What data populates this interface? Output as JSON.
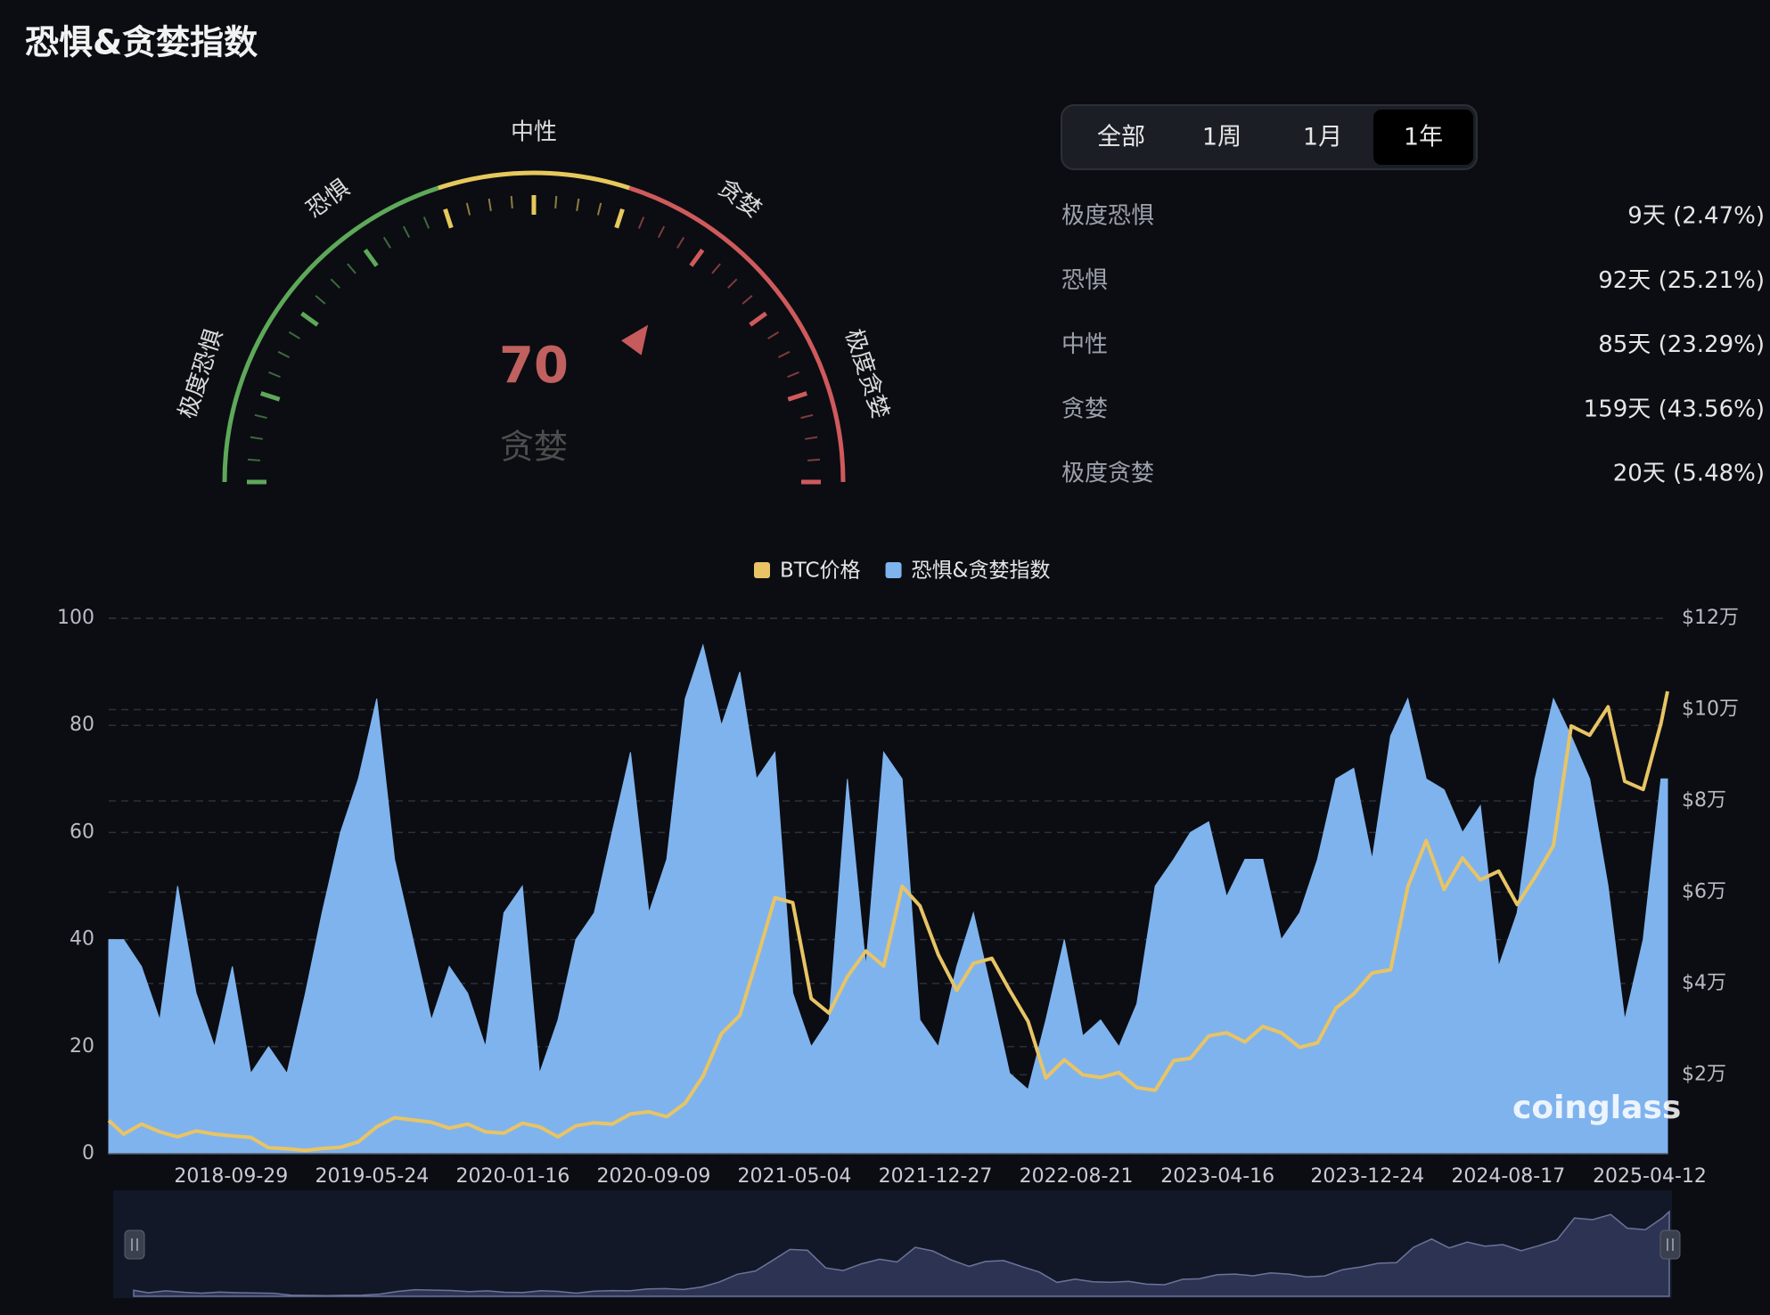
{
  "header": {
    "title": "恐惧&贪婪指数"
  },
  "tabs": {
    "items": [
      "全部",
      "1周",
      "1月",
      "1年"
    ],
    "active": 3
  },
  "stats": {
    "rows": [
      [
        "极度恐惧",
        "9天 (2.47%)"
      ],
      [
        "恐惧",
        "92天 (25.21%)"
      ],
      [
        "中性",
        "85天 (23.29%)"
      ],
      [
        "贪婪",
        "159天 (43.56%)"
      ],
      [
        "极度贪婪",
        "20天 (5.48%)"
      ]
    ]
  },
  "chart_data": [
    {
      "type": "gauge",
      "value": 70,
      "label": "贪婪",
      "range": [
        0,
        100
      ],
      "zones": [
        "极度恐惧",
        "恐惧",
        "中性",
        "贪婪",
        "极度贪婪"
      ]
    },
    {
      "type": "line",
      "legend": "top",
      "grid": true,
      "watermark": "coinglass",
      "x": [
        "2018-03-07",
        "2018-04-01",
        "2018-05-01",
        "2018-06-01",
        "2018-07-01",
        "2018-08-01",
        "2018-09-01",
        "2018-10-01",
        "2018-11-01",
        "2018-12-01",
        "2019-01-01",
        "2019-02-01",
        "2019-03-01",
        "2019-04-01",
        "2019-05-01",
        "2019-06-01",
        "2019-07-01",
        "2019-08-01",
        "2019-09-01",
        "2019-10-01",
        "2019-11-01",
        "2019-12-01",
        "2020-01-01",
        "2020-02-01",
        "2020-03-01",
        "2020-04-01",
        "2020-05-01",
        "2020-06-01",
        "2020-07-01",
        "2020-08-01",
        "2020-09-01",
        "2020-10-01",
        "2020-11-01",
        "2020-12-01",
        "2021-01-01",
        "2021-02-01",
        "2021-03-01",
        "2021-04-01",
        "2021-05-01",
        "2021-06-01",
        "2021-07-01",
        "2021-08-01",
        "2021-09-01",
        "2021-10-01",
        "2021-11-01",
        "2021-12-01",
        "2022-01-01",
        "2022-02-01",
        "2022-03-01",
        "2022-04-01",
        "2022-05-01",
        "2022-06-01",
        "2022-07-01",
        "2022-08-01",
        "2022-09-01",
        "2022-10-01",
        "2022-11-01",
        "2022-12-01",
        "2023-01-01",
        "2023-02-01",
        "2023-03-01",
        "2023-04-01",
        "2023-05-01",
        "2023-06-01",
        "2023-07-01",
        "2023-08-01",
        "2023-09-01",
        "2023-10-01",
        "2023-11-01",
        "2023-12-01",
        "2024-01-01",
        "2024-02-01",
        "2024-03-01",
        "2024-04-01",
        "2024-05-01",
        "2024-06-01",
        "2024-07-01",
        "2024-08-01",
        "2024-09-01",
        "2024-10-01",
        "2024-11-01",
        "2024-12-01",
        "2025-01-01",
        "2025-02-01",
        "2025-03-01",
        "2025-04-01",
        "2025-05-01",
        "2025-05-12"
      ],
      "xlim": [
        "2018-03-07",
        "2025-05-12"
      ],
      "xticks": [
        "2018-09-29",
        "2019-05-24",
        "2020-01-16",
        "2020-09-09",
        "2021-05-04",
        "2021-12-27",
        "2022-08-21",
        "2023-04-16",
        "2023-12-24",
        "2024-08-17",
        "2025-04-12"
      ],
      "ylim": [
        0,
        100
      ],
      "yticks": [
        0,
        20,
        40,
        60,
        80,
        100
      ],
      "y2lim": [
        2700,
        120000
      ],
      "y2ticks": [
        {
          "value": 20000,
          "label": "$2万"
        },
        {
          "value": 40000,
          "label": "$4万"
        },
        {
          "value": 60000,
          "label": "$6万"
        },
        {
          "value": 80000,
          "label": "$8万"
        },
        {
          "value": 100000,
          "label": "$10万"
        },
        {
          "value": 120000,
          "label": "$12万"
        }
      ],
      "series": [
        {
          "name": "BTC价格",
          "color": "#e8c465",
          "axis": "y2",
          "type": "line",
          "values": [
            10000,
            7000,
            9200,
            7500,
            6400,
            7700,
            7000,
            6600,
            6300,
            4000,
            3800,
            3450,
            3850,
            4100,
            5300,
            8600,
            10600,
            10100,
            9600,
            8300,
            9200,
            7500,
            7200,
            9400,
            8600,
            6400,
            8800,
            9500,
            9200,
            11400,
            11900,
            10800,
            13800,
            19700,
            29000,
            33000,
            45000,
            58800,
            57700,
            36700,
            33500,
            41500,
            47100,
            43800,
            61300,
            57000,
            46300,
            38500,
            44400,
            45500,
            38500,
            31700,
            19300,
            23300,
            20000,
            19400,
            20500,
            17200,
            16600,
            23100,
            23600,
            28500,
            29200,
            27200,
            30600,
            29200,
            26000,
            27000,
            34600,
            37700,
            42300,
            43000,
            61200,
            71300,
            60600,
            67500,
            62700,
            64600,
            57300,
            63300,
            70200,
            96400,
            94400,
            100600,
            84300,
            82500,
            97000,
            104000
          ]
        },
        {
          "name": "恐惧&贪婪指数",
          "color": "#7fb3ee",
          "type": "area",
          "values": [
            40,
            40,
            35,
            25,
            50,
            30,
            20,
            35,
            15,
            20,
            15,
            30,
            45,
            60,
            70,
            85,
            55,
            40,
            25,
            35,
            30,
            20,
            45,
            50,
            15,
            25,
            40,
            45,
            60,
            75,
            45,
            55,
            85,
            95,
            80,
            90,
            70,
            75,
            30,
            20,
            25,
            70,
            35,
            75,
            70,
            25,
            20,
            35,
            45,
            30,
            15,
            12,
            25,
            40,
            22,
            25,
            20,
            28,
            50,
            55,
            60,
            62,
            48,
            55,
            55,
            40,
            45,
            55,
            70,
            72,
            55,
            78,
            85,
            70,
            68,
            60,
            65,
            35,
            45,
            70,
            85,
            78,
            70,
            50,
            25,
            40,
            70,
            70
          ]
        }
      ]
    }
  ]
}
